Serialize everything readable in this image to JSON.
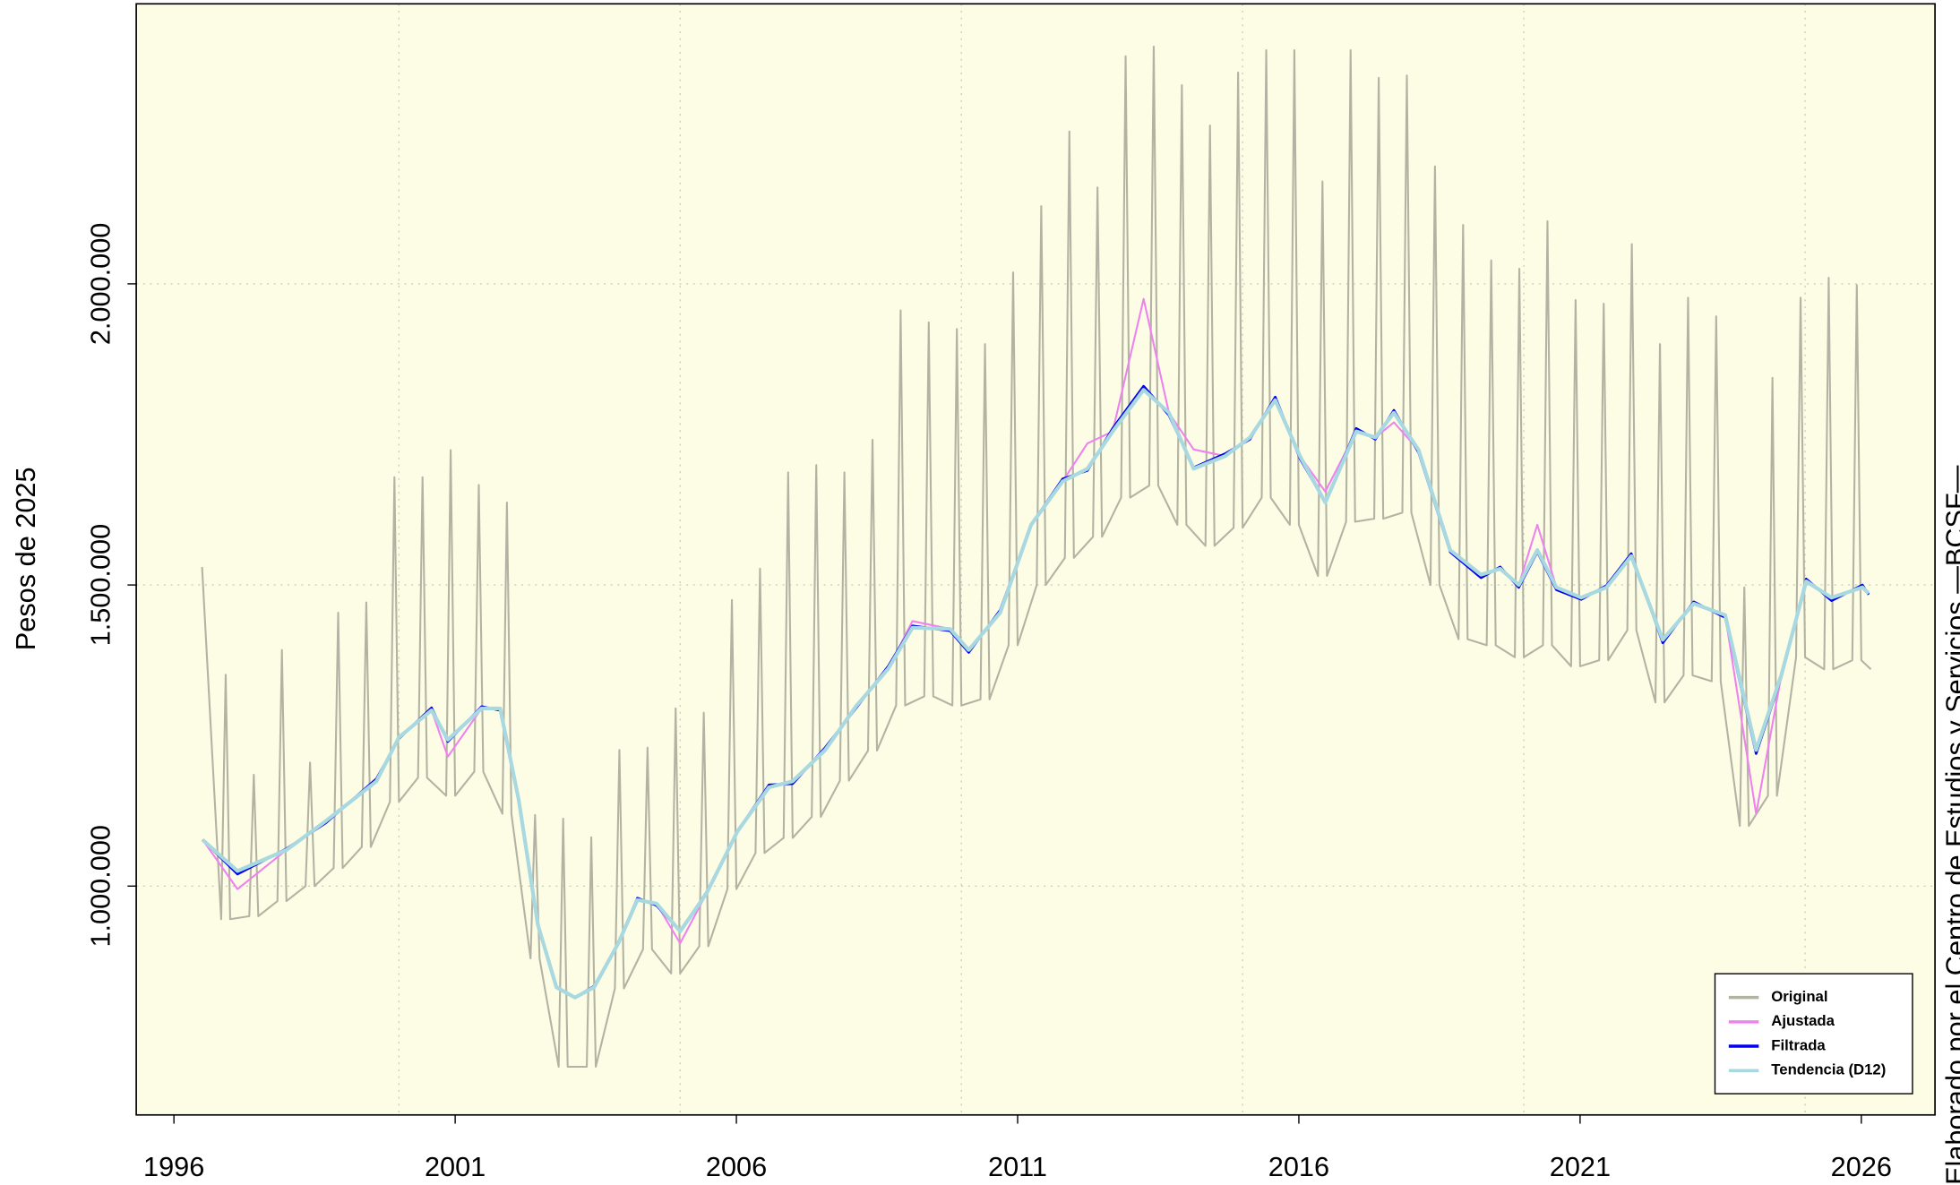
{
  "chart_data": {
    "type": "line",
    "y_label": "Pesos de 2025",
    "side_note": "Elaborado por el Centro de Estudios y Servicios —BCSF—",
    "xlim": [
      1995.33,
      2027.31
    ],
    "xticks": [
      1996,
      2001,
      2006,
      2011,
      2016,
      2021,
      2026
    ],
    "xgrid": [
      2000,
      2005,
      2010,
      2015,
      2020,
      2025
    ],
    "ylim": [
      620000,
      2465000
    ],
    "yticks": [
      {
        "value": 1000000,
        "label": "1.000.000"
      },
      {
        "value": 1500000,
        "label": "1.500.000"
      },
      {
        "value": 2000000,
        "label": "2.000.000"
      }
    ],
    "grid": true,
    "background": "#fdfde6",
    "legend_position": "bottom-right",
    "x": [
      1996.51,
      1997.13,
      1998.0,
      1998.7,
      1999.6,
      2000.0,
      2000.58,
      2000.87,
      2001.47,
      2001.8,
      2002.13,
      2002.47,
      2002.8,
      2003.13,
      2003.47,
      2003.9,
      2004.24,
      2004.58,
      2005.0,
      2005.47,
      2006.02,
      2006.58,
      2007.0,
      2007.58,
      2008.13,
      2008.7,
      2009.13,
      2009.8,
      2010.13,
      2010.69,
      2011.24,
      2011.8,
      2012.24,
      2012.69,
      2013.24,
      2013.69,
      2014.13,
      2014.69,
      2015.13,
      2015.58,
      2016.02,
      2016.47,
      2017.02,
      2017.36,
      2017.69,
      2018.13,
      2018.69,
      2019.24,
      2019.58,
      2019.91,
      2020.24,
      2020.58,
      2021.02,
      2021.47,
      2021.91,
      2022.47,
      2023.02,
      2023.58,
      2024.13,
      2024.58,
      2025.02,
      2025.47,
      2026.02,
      2026.13
    ],
    "series": [
      {
        "name": "Original",
        "color": "#b3b3a3",
        "width": 1.5,
        "x": [
          1996.5,
          1996.84,
          1996.92,
          1997.0,
          1997.34,
          1997.42,
          1997.5,
          1997.84,
          1997.92,
          1998.0,
          1998.34,
          1998.42,
          1998.5,
          1998.84,
          1998.92,
          1999.0,
          1999.34,
          1999.42,
          1999.5,
          1999.84,
          1999.92,
          2000.0,
          2000.34,
          2000.42,
          2000.5,
          2000.84,
          2000.92,
          2001.0,
          2001.34,
          2001.42,
          2001.5,
          2001.84,
          2001.92,
          2002.0,
          2002.34,
          2002.42,
          2002.5,
          2002.84,
          2002.92,
          2003.0,
          2003.34,
          2003.42,
          2003.5,
          2003.84,
          2003.92,
          2004.0,
          2004.34,
          2004.42,
          2004.5,
          2004.84,
          2004.92,
          2005.0,
          2005.34,
          2005.42,
          2005.5,
          2005.84,
          2005.92,
          2006.0,
          2006.34,
          2006.42,
          2006.5,
          2006.84,
          2006.92,
          2007.0,
          2007.34,
          2007.42,
          2007.5,
          2007.84,
          2007.92,
          2008.0,
          2008.34,
          2008.42,
          2008.5,
          2008.84,
          2008.92,
          2009.0,
          2009.34,
          2009.42,
          2009.5,
          2009.84,
          2009.92,
          2010.0,
          2010.34,
          2010.42,
          2010.5,
          2010.84,
          2010.92,
          2011.0,
          2011.34,
          2011.42,
          2011.5,
          2011.84,
          2011.92,
          2012.0,
          2012.34,
          2012.42,
          2012.5,
          2012.84,
          2012.92,
          2013.0,
          2013.34,
          2013.42,
          2013.5,
          2013.84,
          2013.92,
          2014.0,
          2014.34,
          2014.42,
          2014.5,
          2014.84,
          2014.92,
          2015.0,
          2015.34,
          2015.42,
          2015.5,
          2015.84,
          2015.92,
          2016.0,
          2016.34,
          2016.42,
          2016.5,
          2016.84,
          2016.92,
          2017.0,
          2017.34,
          2017.42,
          2017.5,
          2017.84,
          2017.92,
          2018.0,
          2018.34,
          2018.42,
          2018.5,
          2018.84,
          2018.92,
          2019.0,
          2019.34,
          2019.42,
          2019.5,
          2019.84,
          2019.92,
          2020.0,
          2020.34,
          2020.42,
          2020.5,
          2020.84,
          2020.92,
          2021.0,
          2021.34,
          2021.42,
          2021.5,
          2021.84,
          2021.92,
          2022.0,
          2022.34,
          2022.42,
          2022.5,
          2022.84,
          2022.92,
          2023.0,
          2023.34,
          2023.42,
          2023.5,
          2023.84,
          2023.92,
          2024.0,
          2024.34,
          2024.42,
          2024.5,
          2024.84,
          2024.92,
          2025.0,
          2025.34,
          2025.42,
          2025.5,
          2025.84,
          2025.92,
          2026.0,
          2026.17
        ],
        "values": [
          1530000,
          945000,
          1351000,
          945000,
          950000,
          1185000,
          950000,
          975000,
          1392000,
          975000,
          1000000,
          1205000,
          1000000,
          1030000,
          1454000,
          1030000,
          1065000,
          1471000,
          1065000,
          1140000,
          1679000,
          1140000,
          1180000,
          1679000,
          1180000,
          1150000,
          1724000,
          1150000,
          1190000,
          1666000,
          1190000,
          1120000,
          1637000,
          1120000,
          880000,
          1118000,
          880000,
          700000,
          1112000,
          700000,
          700000,
          1081000,
          700000,
          830000,
          1226000,
          830000,
          895000,
          1230000,
          895000,
          855000,
          1295000,
          855000,
          900000,
          1288000,
          900000,
          995000,
          1475000,
          995000,
          1055000,
          1527000,
          1055000,
          1080000,
          1687000,
          1080000,
          1115000,
          1699000,
          1115000,
          1175000,
          1687000,
          1175000,
          1225000,
          1741000,
          1225000,
          1300000,
          1956000,
          1300000,
          1315000,
          1936000,
          1315000,
          1300000,
          1925000,
          1300000,
          1310000,
          1900000,
          1310000,
          1400000,
          2019000,
          1400000,
          1500000,
          2129000,
          1500000,
          1545000,
          2253000,
          1545000,
          1580000,
          2160000,
          1580000,
          1645000,
          2378000,
          1645000,
          1665000,
          2394000,
          1665000,
          1600000,
          2330000,
          1600000,
          1565000,
          2263000,
          1565000,
          1595000,
          2351000,
          1595000,
          1645000,
          2388000,
          1645000,
          1600000,
          2388000,
          1600000,
          1515000,
          2170000,
          1515000,
          1605000,
          2388000,
          1605000,
          1610000,
          2342000,
          1610000,
          1620000,
          2346000,
          1620000,
          1500000,
          2195000,
          1500000,
          1410000,
          2098000,
          1410000,
          1400000,
          2039000,
          1400000,
          1380000,
          2025000,
          1380000,
          1400000,
          2104000,
          1400000,
          1365000,
          1973000,
          1365000,
          1375000,
          1967000,
          1375000,
          1425000,
          2066000,
          1425000,
          1305000,
          1900000,
          1305000,
          1350000,
          1977000,
          1350000,
          1340000,
          1946000,
          1340000,
          1100000,
          1496000,
          1100000,
          1150000,
          1844000,
          1150000,
          1380000,
          1977000,
          1380000,
          1360000,
          2010000,
          1360000,
          1375000,
          1998000,
          1375000,
          1360000
        ]
      },
      {
        "name": "Ajustada",
        "color": "#ee82ee",
        "width": 1.5,
        "values": [
          1077000,
          995000,
          1060000,
          1108000,
          1174000,
          1247000,
          1292000,
          1215000,
          1295000,
          1295000,
          1143000,
          936000,
          832000,
          815000,
          832000,
          905000,
          977000,
          971000,
          905000,
          988000,
          1091000,
          1164000,
          1174000,
          1226000,
          1299000,
          1361000,
          1440000,
          1427000,
          1392000,
          1454000,
          1600000,
          1672000,
          1735000,
          1755000,
          1975000,
          1786000,
          1725000,
          1714000,
          1745000,
          1807000,
          1714000,
          1655000,
          1755000,
          1745000,
          1770000,
          1724000,
          1558000,
          1517000,
          1527000,
          1500000,
          1600000,
          1496000,
          1479000,
          1496000,
          1548000,
          1409000,
          1469000,
          1450000,
          1120000,
          1351000,
          1506000,
          1479000,
          1496000,
          1486000
        ]
      },
      {
        "name": "Filtrada",
        "color": "#0000ee",
        "width": 2,
        "values": [
          1077000,
          1020000,
          1062000,
          1105000,
          1178000,
          1245000,
          1296000,
          1240000,
          1298000,
          1292000,
          1143000,
          936000,
          832000,
          815000,
          834000,
          905000,
          980000,
          968000,
          925000,
          990000,
          1091000,
          1168000,
          1170000,
          1230000,
          1296000,
          1365000,
          1432000,
          1424000,
          1388000,
          1458000,
          1600000,
          1676000,
          1690000,
          1760000,
          1830000,
          1782000,
          1695000,
          1718000,
          1742000,
          1812000,
          1710000,
          1637000,
          1760000,
          1742000,
          1790000,
          1720000,
          1555000,
          1512000,
          1530000,
          1496000,
          1555000,
          1492000,
          1476000,
          1499000,
          1552000,
          1404000,
          1472000,
          1446000,
          1220000,
          1348000,
          1510000,
          1474000,
          1500000,
          1484000
        ]
      },
      {
        "name": "Tendencia (D12)",
        "color": "#a8d8e0",
        "width": 3,
        "values": [
          1077000,
          1025000,
          1060000,
          1108000,
          1174000,
          1247000,
          1292000,
          1243000,
          1295000,
          1295000,
          1143000,
          936000,
          832000,
          815000,
          832000,
          905000,
          977000,
          971000,
          925000,
          988000,
          1091000,
          1164000,
          1174000,
          1226000,
          1299000,
          1361000,
          1429000,
          1427000,
          1392000,
          1454000,
          1600000,
          1672000,
          1693000,
          1755000,
          1824000,
          1786000,
          1693000,
          1714000,
          1745000,
          1807000,
          1714000,
          1637000,
          1755000,
          1745000,
          1786000,
          1724000,
          1558000,
          1517000,
          1527000,
          1500000,
          1558000,
          1496000,
          1479000,
          1496000,
          1548000,
          1409000,
          1469000,
          1450000,
          1226000,
          1351000,
          1506000,
          1479000,
          1496000,
          1486000
        ]
      }
    ]
  }
}
